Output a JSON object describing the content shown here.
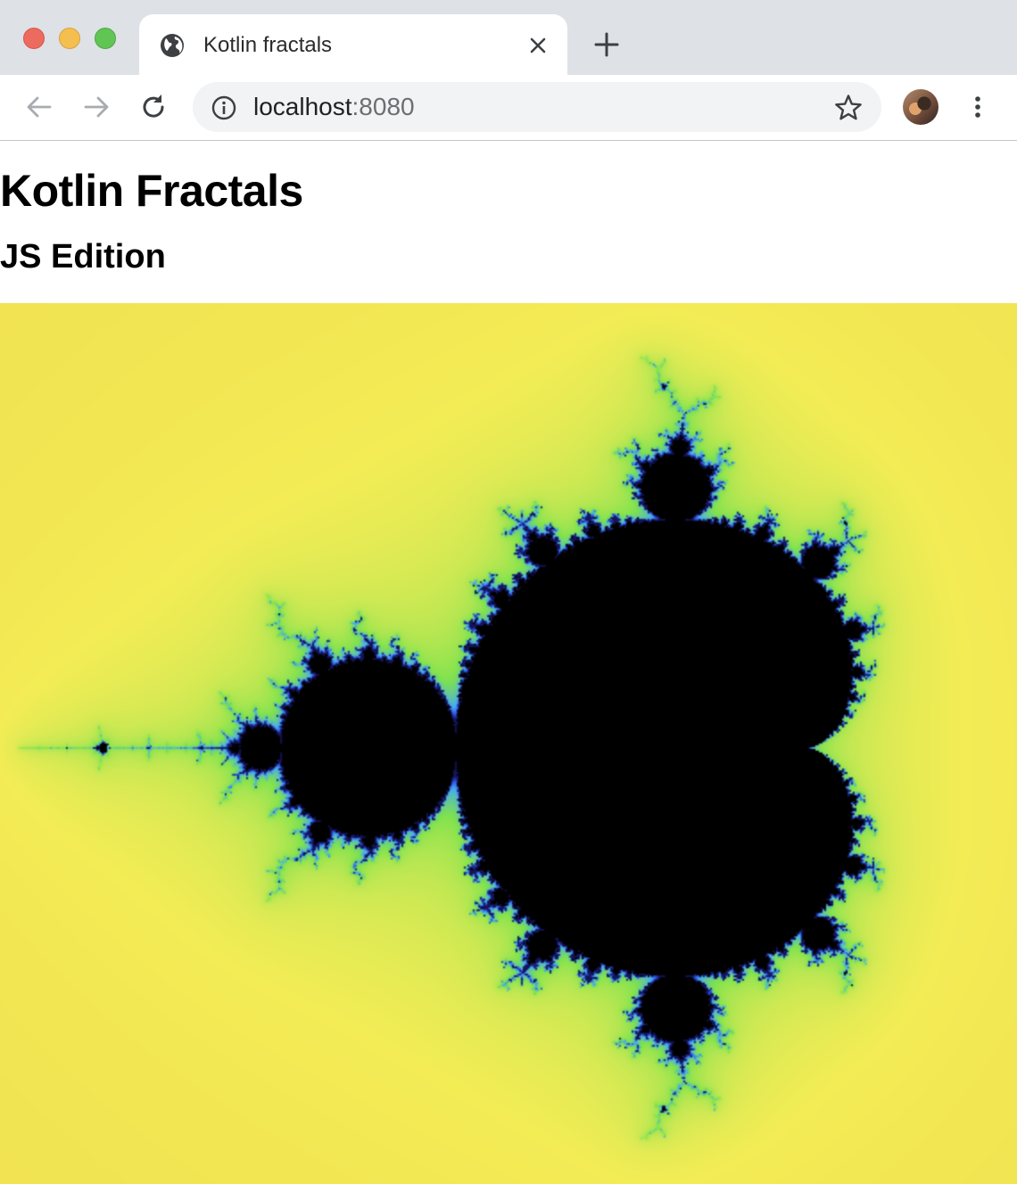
{
  "browser": {
    "tab": {
      "title": "Kotlin fractals"
    },
    "address": {
      "host": "localhost",
      "port": ":8080"
    }
  },
  "page": {
    "heading": "Kotlin Fractals",
    "subheading": "JS Edition"
  },
  "colors": {
    "fractal_inside": "#000000",
    "fractal_outer": "#ecc94a",
    "fractal_mid": "#f3ec55",
    "fractal_near": "#7fe24e",
    "fractal_edge": "#2c50e6"
  }
}
